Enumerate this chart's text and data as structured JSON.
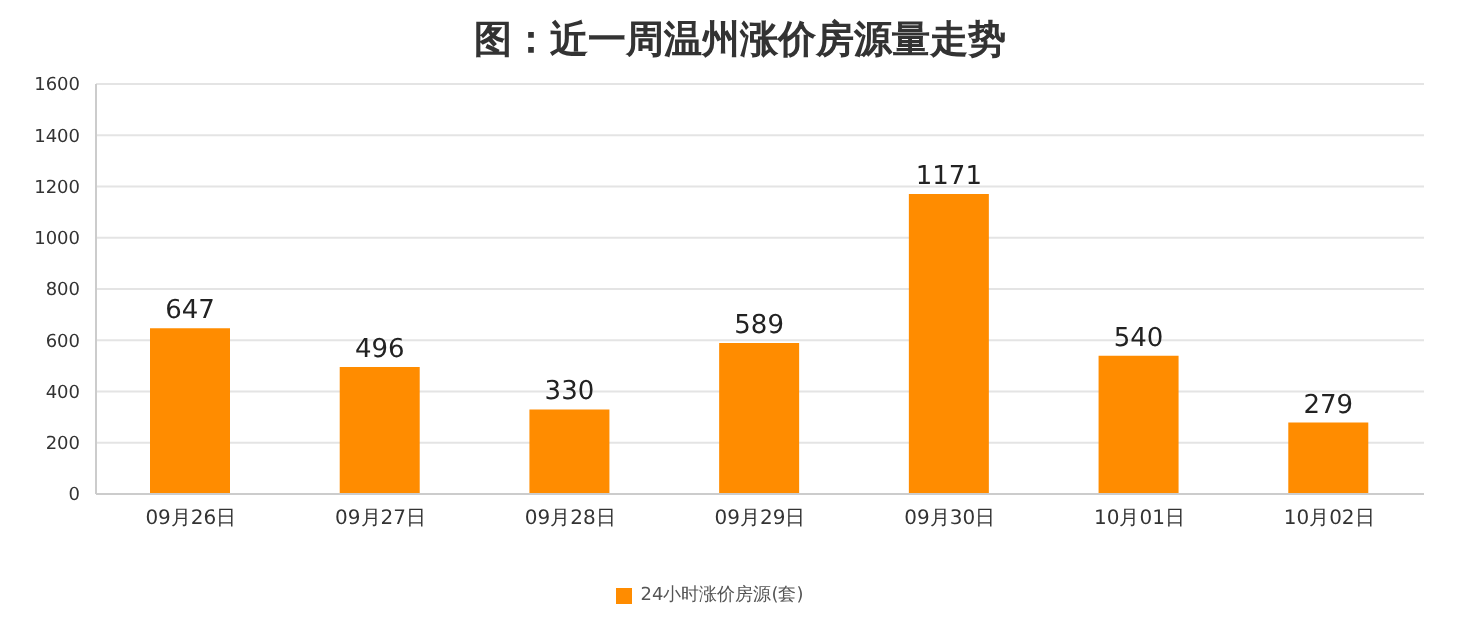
{
  "chart_data": {
    "type": "bar",
    "title": "图：近一周温州涨价房源量走势",
    "categories": [
      "09月26日",
      "09月27日",
      "09月28日",
      "09月29日",
      "09月30日",
      "10月01日",
      "10月02日"
    ],
    "series": [
      {
        "name": "24小时涨价房源(套)",
        "color": "#ff8c00",
        "values": [
          647,
          496,
          330,
          589,
          1171,
          540,
          279
        ]
      }
    ],
    "ylim": [
      0,
      1600
    ],
    "yticks": [
      0,
      200,
      400,
      600,
      800,
      1000,
      1200,
      1400,
      1600
    ],
    "grid": "y",
    "legend": "bottom",
    "data_labels": true
  }
}
